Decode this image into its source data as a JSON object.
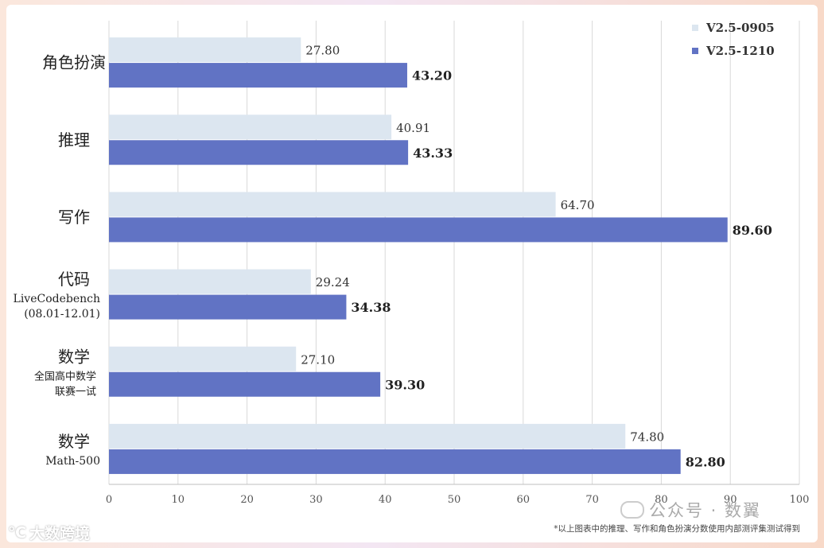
{
  "chart_data": {
    "type": "bar",
    "orientation": "horizontal",
    "categories": [
      {
        "main": "角色扮演",
        "sub": []
      },
      {
        "main": "推理",
        "sub": []
      },
      {
        "main": "写作",
        "sub": []
      },
      {
        "main": "代码",
        "sub": [
          "LiveCodebench",
          "(08.01-12.01)"
        ]
      },
      {
        "main": "数学",
        "sub": [
          "全国高中数学",
          "联赛一试"
        ]
      },
      {
        "main": "数学",
        "sub": [
          "Math-500"
        ]
      }
    ],
    "series": [
      {
        "name": "V2.5-0905",
        "color": "#dce6f0",
        "values": [
          27.8,
          40.91,
          64.7,
          29.24,
          27.1,
          74.8
        ],
        "labels": [
          "27.80",
          "40.91",
          "64.70",
          "29.24",
          "27.10",
          "74.80"
        ]
      },
      {
        "name": "V2.5-1210",
        "color": "#6173c4",
        "values": [
          43.2,
          43.33,
          89.6,
          34.38,
          39.3,
          82.8
        ],
        "labels": [
          "43.20",
          "43.33",
          "89.60",
          "34.38",
          "39.30",
          "82.80"
        ]
      }
    ],
    "xlim": [
      0,
      100
    ],
    "xticks": [
      0,
      10,
      20,
      30,
      40,
      50,
      60,
      70,
      80,
      90,
      100
    ],
    "grid": true,
    "legend_position": "top-right"
  },
  "footnote": "*以上图表中的推理、写作和角色扮演分数使用内部测评集测试得到",
  "watermark_right": "公众号 · 数翼",
  "watermark_left": "大数跨境"
}
